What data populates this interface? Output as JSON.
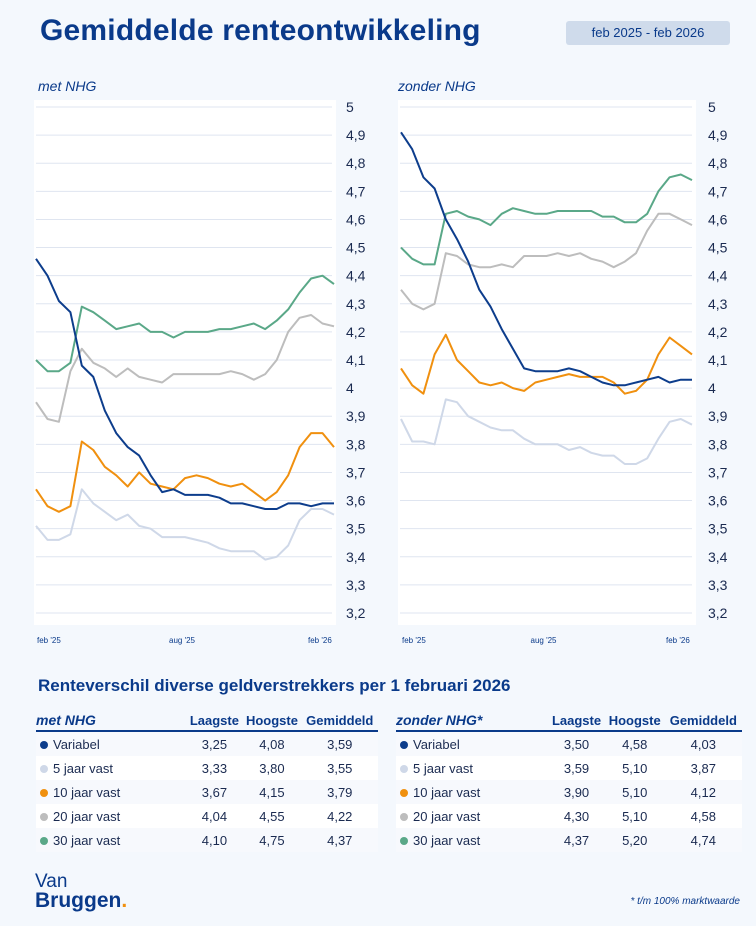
{
  "header": {
    "title": "Gemiddelde renteontwikkeling",
    "period": "feb 2025 - feb 2026"
  },
  "colors": {
    "Variabel": "#0d3d8c",
    "5 jaar vast": "#cfd8e8",
    "10 jaar vast": "#f0900f",
    "20 jaar vast": "#bdbdbd",
    "30 jaar vast": "#5aa888",
    "title": "#0a3a8a"
  },
  "chart_data": [
    {
      "type": "line",
      "title": "met NHG",
      "ylim": [
        3.2,
        5
      ],
      "yticks": [
        "5",
        "4,9",
        "4,8",
        "4,7",
        "4,6",
        "4,5",
        "4,4",
        "4,3",
        "4,2",
        "4,1",
        "4",
        "3,9",
        "3,8",
        "3,7",
        "3,6",
        "3,5",
        "3,4",
        "3,3",
        "3,2"
      ],
      "xticks": [
        "feb '25",
        "aug '25",
        "feb '26"
      ],
      "grid": true,
      "y_axis_position": "right",
      "series": [
        {
          "name": "Variabel",
          "values": [
            4.46,
            4.4,
            4.31,
            4.27,
            4.08,
            4.04,
            3.92,
            3.84,
            3.79,
            3.76,
            3.69,
            3.63,
            3.64,
            3.62,
            3.62,
            3.62,
            3.61,
            3.59,
            3.59,
            3.58,
            3.57,
            3.57,
            3.59,
            3.59,
            3.58,
            3.59,
            3.59
          ]
        },
        {
          "name": "5 jaar vast",
          "values": [
            3.51,
            3.46,
            3.46,
            3.48,
            3.64,
            3.59,
            3.56,
            3.53,
            3.55,
            3.51,
            3.5,
            3.47,
            3.47,
            3.47,
            3.46,
            3.45,
            3.43,
            3.42,
            3.42,
            3.42,
            3.39,
            3.4,
            3.44,
            3.53,
            3.57,
            3.57,
            3.55
          ]
        },
        {
          "name": "10 jaar vast",
          "values": [
            3.64,
            3.58,
            3.56,
            3.58,
            3.81,
            3.78,
            3.72,
            3.69,
            3.65,
            3.7,
            3.66,
            3.65,
            3.64,
            3.68,
            3.69,
            3.68,
            3.66,
            3.65,
            3.66,
            3.63,
            3.6,
            3.63,
            3.69,
            3.79,
            3.84,
            3.84,
            3.79
          ]
        },
        {
          "name": "20 jaar vast",
          "values": [
            3.95,
            3.89,
            3.88,
            4.06,
            4.14,
            4.09,
            4.07,
            4.04,
            4.07,
            4.04,
            4.03,
            4.02,
            4.05,
            4.05,
            4.05,
            4.05,
            4.05,
            4.06,
            4.05,
            4.03,
            4.05,
            4.1,
            4.2,
            4.25,
            4.26,
            4.23,
            4.22
          ]
        },
        {
          "name": "30 jaar vast",
          "values": [
            4.1,
            4.06,
            4.06,
            4.09,
            4.29,
            4.27,
            4.24,
            4.21,
            4.22,
            4.23,
            4.2,
            4.2,
            4.18,
            4.2,
            4.2,
            4.2,
            4.21,
            4.21,
            4.22,
            4.23,
            4.21,
            4.24,
            4.28,
            4.34,
            4.39,
            4.4,
            4.37
          ]
        }
      ]
    },
    {
      "type": "line",
      "title": "zonder NHG",
      "ylim": [
        3.2,
        5
      ],
      "yticks": [
        "5",
        "4,9",
        "4,8",
        "4,7",
        "4,6",
        "4,5",
        "4,4",
        "4,3",
        "4,2",
        "4,1",
        "4",
        "3,9",
        "3,8",
        "3,7",
        "3,6",
        "3,5",
        "3,4",
        "3,3",
        "3,2"
      ],
      "xticks": [
        "feb '25",
        "aug '25",
        "feb '26"
      ],
      "grid": true,
      "y_axis_position": "right",
      "series": [
        {
          "name": "Variabel",
          "values": [
            4.91,
            4.85,
            4.75,
            4.71,
            4.6,
            4.53,
            4.45,
            4.35,
            4.29,
            4.21,
            4.14,
            4.07,
            4.06,
            4.06,
            4.06,
            4.07,
            4.06,
            4.04,
            4.02,
            4.01,
            4.01,
            4.02,
            4.03,
            4.04,
            4.02,
            4.03,
            4.03
          ]
        },
        {
          "name": "5 jaar vast",
          "values": [
            3.89,
            3.81,
            3.81,
            3.8,
            3.96,
            3.95,
            3.9,
            3.88,
            3.86,
            3.85,
            3.85,
            3.82,
            3.8,
            3.8,
            3.8,
            3.78,
            3.79,
            3.77,
            3.76,
            3.76,
            3.73,
            3.73,
            3.75,
            3.82,
            3.88,
            3.89,
            3.87
          ]
        },
        {
          "name": "10 jaar vast",
          "values": [
            4.07,
            4.01,
            3.98,
            4.12,
            4.19,
            4.1,
            4.06,
            4.02,
            4.01,
            4.02,
            4.0,
            3.99,
            4.02,
            4.03,
            4.04,
            4.05,
            4.04,
            4.04,
            4.04,
            4.02,
            3.98,
            3.99,
            4.03,
            4.12,
            4.18,
            4.15,
            4.12
          ]
        },
        {
          "name": "20 jaar vast",
          "values": [
            4.35,
            4.3,
            4.28,
            4.3,
            4.48,
            4.47,
            4.44,
            4.43,
            4.43,
            4.44,
            4.43,
            4.47,
            4.47,
            4.47,
            4.48,
            4.47,
            4.48,
            4.46,
            4.45,
            4.43,
            4.45,
            4.48,
            4.56,
            4.62,
            4.62,
            4.6,
            4.58
          ]
        },
        {
          "name": "30 jaar vast",
          "values": [
            4.5,
            4.46,
            4.44,
            4.44,
            4.62,
            4.63,
            4.61,
            4.6,
            4.58,
            4.62,
            4.64,
            4.63,
            4.62,
            4.62,
            4.63,
            4.63,
            4.63,
            4.63,
            4.61,
            4.61,
            4.59,
            4.59,
            4.62,
            4.7,
            4.75,
            4.76,
            4.74
          ]
        }
      ]
    }
  ],
  "section_title": "Renteverschil diverse geldverstrekkers per 1 februari 2026",
  "tables": [
    {
      "title": "met NHG",
      "columns": [
        "Laagste",
        "Hoogste",
        "Gemiddeld"
      ],
      "rows": [
        {
          "label": "Variabel",
          "values": [
            "3,25",
            "4,08",
            "3,59"
          ]
        },
        {
          "label": "5 jaar vast",
          "values": [
            "3,33",
            "3,80",
            "3,55"
          ]
        },
        {
          "label": "10 jaar vast",
          "values": [
            "3,67",
            "4,15",
            "3,79"
          ]
        },
        {
          "label": "20 jaar vast",
          "values": [
            "4,04",
            "4,55",
            "4,22"
          ]
        },
        {
          "label": "30 jaar vast",
          "values": [
            "4,10",
            "4,75",
            "4,37"
          ]
        }
      ]
    },
    {
      "title": "zonder NHG*",
      "columns": [
        "Laagste",
        "Hoogste",
        "Gemiddeld"
      ],
      "rows": [
        {
          "label": "Variabel",
          "values": [
            "3,50",
            "4,58",
            "4,03"
          ]
        },
        {
          "label": "5 jaar vast",
          "values": [
            "3,59",
            "5,10",
            "3,87"
          ]
        },
        {
          "label": "10 jaar vast",
          "values": [
            "3,90",
            "5,10",
            "4,12"
          ]
        },
        {
          "label": "20 jaar vast",
          "values": [
            "4,30",
            "5,10",
            "4,58"
          ]
        },
        {
          "label": "30 jaar vast",
          "values": [
            "4,37",
            "5,20",
            "4,74"
          ]
        }
      ]
    }
  ],
  "logo": {
    "line1": "Van",
    "line2": "Bruggen",
    "dot": "."
  },
  "footnote": "* t/m 100% marktwaarde"
}
